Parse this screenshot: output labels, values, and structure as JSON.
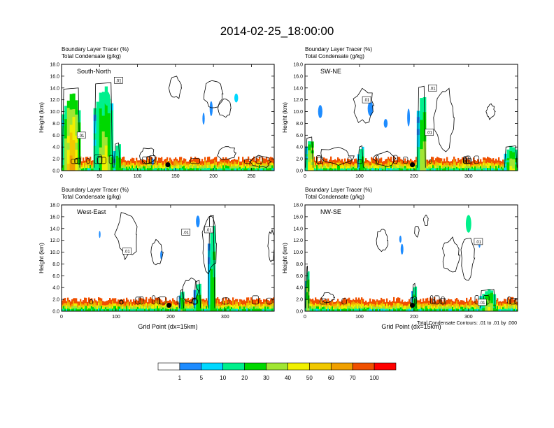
{
  "title": "2014-02-25_18:00:00",
  "colors": {
    "palette": [
      "#ffffff",
      "#1e8cff",
      "#00d8ff",
      "#00f08c",
      "#00d800",
      "#a0e632",
      "#f0f000",
      "#f0c800",
      "#f0a000",
      "#f05000",
      "#ff0000"
    ],
    "contour": "#000000",
    "marker": "#000000"
  },
  "chart_data": [
    {
      "type": "heatmap",
      "panel_label": "South-North",
      "title_lines": [
        "Boundary Layer Tracer    (%)",
        "Total Condensate    (g/kg)"
      ],
      "ylabel": "Height (km)",
      "xlabel": "",
      "ylim": [
        0,
        18
      ],
      "y_ticks": [
        "0.0",
        "2.0",
        "4.0",
        "6.0",
        "8.0",
        "10.0",
        "12.0",
        "14.0",
        "16.0",
        "18.0"
      ],
      "xlim": [
        0,
        280
      ],
      "x_ticks": [
        {
          "v": 0,
          "label": "0"
        },
        {
          "v": 50,
          "label": "50"
        },
        {
          "v": 100,
          "label": "100"
        },
        {
          "v": 150,
          "label": "150"
        },
        {
          "v": 200,
          "label": "200"
        },
        {
          "v": 250,
          "label": "250"
        }
      ],
      "contour_labels": [
        {
          "x": 75,
          "y": 15.3,
          "text": ".01"
        },
        {
          "x": 26,
          "y": 6.0,
          "text": ".01"
        }
      ],
      "marker": {
        "x": 140,
        "y": 1.0
      },
      "columns": [
        {
          "x0": 0,
          "x1": 25,
          "top": 14.3,
          "peak": 60
        },
        {
          "x0": 42,
          "x1": 68,
          "top": 15.2,
          "peak": 40
        },
        {
          "x0": 68,
          "x1": 78,
          "top": 5.0,
          "peak": 30
        }
      ],
      "blobs": [
        {
          "x": 60,
          "y": 12.2,
          "w": 8,
          "h": 2.4,
          "c": 3
        },
        {
          "x": 197,
          "y": 10.5,
          "w": 4,
          "h": 2.5,
          "c": 1
        },
        {
          "x": 187,
          "y": 8.8,
          "w": 3,
          "h": 2,
          "c": 1
        },
        {
          "x": 230,
          "y": 12.3,
          "w": 5,
          "h": 1.5,
          "c": 2
        },
        {
          "x": 120,
          "y": 1.5,
          "w": 3,
          "h": 1.2,
          "c": 1
        }
      ],
      "contours": [
        {
          "x": 150,
          "y": 14.0,
          "rx": 8,
          "ry": 1.8
        },
        {
          "x": 200,
          "y": 13.0,
          "rx": 12,
          "ry": 2.5
        },
        {
          "x": 215,
          "y": 10.5,
          "rx": 8,
          "ry": 1.5
        },
        {
          "x": 113,
          "y": 2.5,
          "rx": 10,
          "ry": 1.5
        },
        {
          "x": 218,
          "y": 3.0,
          "rx": 12,
          "ry": 1.2
        },
        {
          "x": 262,
          "y": 1.5,
          "rx": 14,
          "ry": 1.0
        }
      ]
    },
    {
      "type": "heatmap",
      "panel_label": "SW-NE",
      "title_lines": [
        "Boundary Layer Tracer    (%)",
        "Total Condensate    (g/kg)"
      ],
      "ylabel": "Height (km)",
      "xlabel": "",
      "ylim": [
        0,
        18
      ],
      "y_ticks": [
        "0.0",
        "2.0",
        "4.0",
        "6.0",
        "8.0",
        "10.0",
        "12.0",
        "14.0",
        "16.0",
        "18.0"
      ],
      "xlim": [
        0,
        390
      ],
      "x_ticks": [
        {
          "v": 0,
          "label": "0"
        },
        {
          "v": 100,
          "label": "100"
        },
        {
          "v": 200,
          "label": "200"
        },
        {
          "v": 300,
          "label": "300"
        }
      ],
      "contour_labels": [
        {
          "x": 234,
          "y": 14.0,
          "text": ".01"
        },
        {
          "x": 113,
          "y": 12.0,
          "text": ".01"
        },
        {
          "x": 228,
          "y": 6.5,
          "text": ".01"
        }
      ],
      "marker": {
        "x": 197,
        "y": 1.0
      },
      "columns": [
        {
          "x0": 0,
          "x1": 16,
          "top": 6.0,
          "peak": 50
        },
        {
          "x0": 205,
          "x1": 222,
          "top": 14.6,
          "peak": 40
        },
        {
          "x0": 96,
          "x1": 108,
          "top": 4.5,
          "peak": 30
        },
        {
          "x0": 365,
          "x1": 390,
          "top": 4.5,
          "peak": 40
        }
      ],
      "blobs": [
        {
          "x": 28,
          "y": 10.0,
          "w": 8,
          "h": 2.2,
          "c": 1
        },
        {
          "x": 120,
          "y": 10.5,
          "w": 10,
          "h": 2.5,
          "c": 1
        },
        {
          "x": 148,
          "y": 8.0,
          "w": 7,
          "h": 1.5,
          "c": 1
        },
        {
          "x": 190,
          "y": 9.0,
          "w": 5,
          "h": 3,
          "c": 1
        }
      ],
      "contours": [
        {
          "x": 108,
          "y": 11.0,
          "rx": 18,
          "ry": 3
        },
        {
          "x": 255,
          "y": 9.0,
          "rx": 18,
          "ry": 5.5
        },
        {
          "x": 340,
          "y": 10.0,
          "rx": 8,
          "ry": 1.2
        },
        {
          "x": 56,
          "y": 2.5,
          "rx": 30,
          "ry": 1.5
        },
        {
          "x": 147,
          "y": 2.0,
          "rx": 20,
          "ry": 1.2
        }
      ]
    },
    {
      "type": "heatmap",
      "panel_label": "West-East",
      "title_lines": [
        "Boundary Layer Tracer    (%)",
        "Total Condensate    (g/kg)"
      ],
      "ylabel": "Height (km)",
      "xlabel": "Grid Point (dx=15km)",
      "ylim": [
        0,
        18
      ],
      "y_ticks": [
        "0.0",
        "2.0",
        "4.0",
        "6.0",
        "8.0",
        "10.0",
        "12.0",
        "14.0",
        "16.0",
        "18.0"
      ],
      "xlim": [
        0,
        390
      ],
      "x_ticks": [
        {
          "v": 0,
          "label": "0"
        },
        {
          "v": 100,
          "label": "100"
        },
        {
          "v": 200,
          "label": "200"
        },
        {
          "v": 300,
          "label": "300"
        }
      ],
      "contour_labels": [
        {
          "x": 228,
          "y": 13.4,
          "text": ".01"
        },
        {
          "x": 270,
          "y": 13.8,
          "text": ".01"
        },
        {
          "x": 120,
          "y": 10.2,
          "text": ".01"
        }
      ],
      "marker": {
        "x": 197,
        "y": 1.0
      },
      "columns": [
        {
          "x0": 268,
          "x1": 282,
          "top": 16.5,
          "peak": 30
        },
        {
          "x0": 242,
          "x1": 256,
          "top": 5.5,
          "peak": 30
        },
        {
          "x0": 215,
          "x1": 225,
          "top": 4.0,
          "peak": 30
        }
      ],
      "blobs": [
        {
          "x": 250,
          "y": 15.2,
          "w": 7,
          "h": 2.0,
          "c": 1
        },
        {
          "x": 183,
          "y": 9.5,
          "w": 4,
          "h": 1.5,
          "c": 1
        },
        {
          "x": 70,
          "y": 13.0,
          "w": 3,
          "h": 1.2,
          "c": 1
        }
      ],
      "contours": [
        {
          "x": 120,
          "y": 13.0,
          "rx": 20,
          "ry": 4
        },
        {
          "x": 175,
          "y": 10.0,
          "rx": 10,
          "ry": 2
        },
        {
          "x": 272,
          "y": 11.5,
          "rx": 14,
          "ry": 5
        },
        {
          "x": 385,
          "y": 11.0,
          "rx": 6,
          "ry": 2.5
        },
        {
          "x": 235,
          "y": 3.5,
          "rx": 15,
          "ry": 2
        }
      ]
    },
    {
      "type": "heatmap",
      "panel_label": "NW-SE",
      "title_lines": [
        "Boundary Layer Tracer    (%)",
        "Total Condensate    (g/kg)"
      ],
      "ylabel": "Height (km)",
      "xlabel": "Grid Point (dx=15km)",
      "ylim": [
        0,
        18
      ],
      "y_ticks": [
        "0.0",
        "2.0",
        "4.0",
        "6.0",
        "8.0",
        "10.0",
        "12.0",
        "14.0",
        "16.0",
        "18.0"
      ],
      "xlim": [
        0,
        390
      ],
      "x_ticks": [
        {
          "v": 0,
          "label": "0"
        },
        {
          "v": 100,
          "label": "100"
        },
        {
          "v": 200,
          "label": "200"
        },
        {
          "v": 300,
          "label": "300"
        }
      ],
      "contour_labels": [
        {
          "x": 318,
          "y": 11.8,
          "text": ".01"
        },
        {
          "x": 325,
          "y": 1.5,
          "text": ".01"
        }
      ],
      "marker": {
        "x": 197,
        "y": 1.0
      },
      "columns": [
        {
          "x0": 0,
          "x1": 8,
          "top": 8.0,
          "peak": 40
        },
        {
          "x0": 195,
          "x1": 205,
          "top": 5.0,
          "peak": 30
        },
        {
          "x0": 320,
          "x1": 350,
          "top": 4.0,
          "peak": 40
        }
      ],
      "blobs": [
        {
          "x": 300,
          "y": 14.8,
          "w": 10,
          "h": 3.0,
          "c": 3
        },
        {
          "x": 178,
          "y": 10.5,
          "w": 5,
          "h": 1.8,
          "c": 1
        },
        {
          "x": 175,
          "y": 12.2,
          "w": 4,
          "h": 1.2,
          "c": 1
        },
        {
          "x": 320,
          "y": 11.5,
          "w": 4,
          "h": 1.5,
          "c": 1
        }
      ],
      "contours": [
        {
          "x": 142,
          "y": 12.0,
          "rx": 10,
          "ry": 2
        },
        {
          "x": 268,
          "y": 9.5,
          "rx": 15,
          "ry": 3
        },
        {
          "x": 298,
          "y": 9.0,
          "rx": 12,
          "ry": 4
        },
        {
          "x": 205,
          "y": 13.5,
          "rx": 4,
          "ry": 0.9
        },
        {
          "x": 222,
          "y": 15.4,
          "rx": 4,
          "ry": 0.9
        },
        {
          "x": 42,
          "y": 2.3,
          "rx": 12,
          "ry": 0.8
        }
      ]
    }
  ],
  "contour_note": "Total Condensate Contours: .01 to .01 by .000",
  "colorbar": {
    "labels": [
      "1",
      "5",
      "10",
      "20",
      "30",
      "40",
      "50",
      "60",
      "70",
      "100"
    ],
    "colors": [
      "#ffffff",
      "#1e8cff",
      "#00d8ff",
      "#00f08c",
      "#00d800",
      "#a0e632",
      "#f0f000",
      "#f0c800",
      "#f0a000",
      "#f05000",
      "#ff0000"
    ]
  }
}
